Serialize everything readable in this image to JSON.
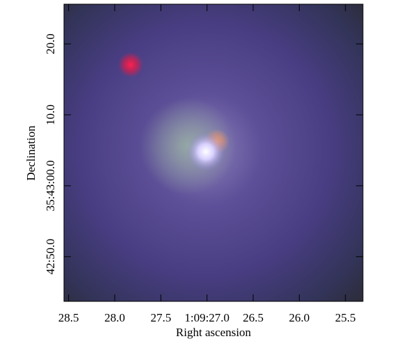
{
  "chart_data": {
    "type": "image",
    "xlabel": "Right ascension",
    "ylabel": "Declination",
    "xlim": [
      28.55,
      25.31
    ],
    "xticks": [
      28.5,
      {
        "value": 28.0,
        "label": "28.0"
      },
      27.5,
      {
        "value": 27.0,
        "label": "1:09:27.0"
      },
      26.5,
      {
        "value": 26.0,
        "label": "26.0"
      },
      25.5
    ],
    "ylim": [
      -16.3,
      25.6
    ],
    "yticks": [
      {
        "value": 20,
        "label": "20.0"
      },
      {
        "value": 10,
        "label": "10.0"
      },
      {
        "value": 0,
        "label": "35:43:00.0"
      },
      {
        "value": -10,
        "label": "42:50.0"
      }
    ]
  }
}
